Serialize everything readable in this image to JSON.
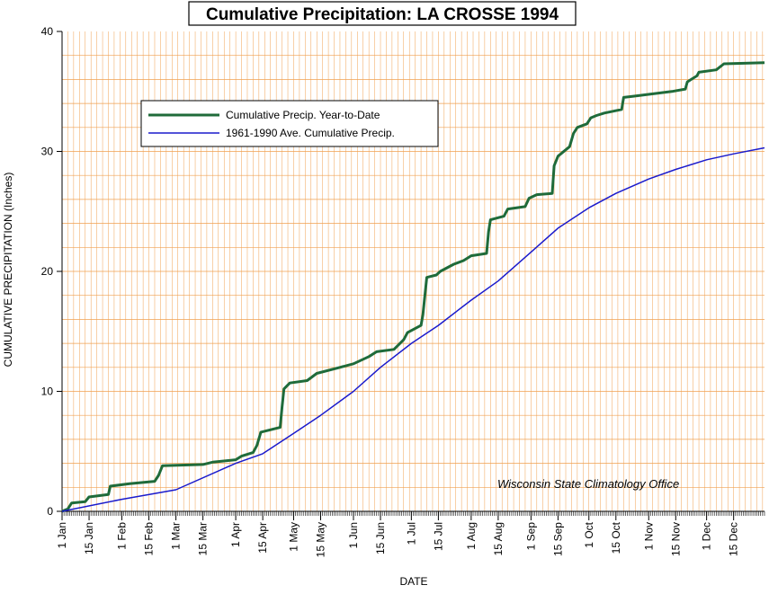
{
  "chart_data": {
    "type": "line",
    "title": "Cumulative Precipitation: LA CROSSE 1994",
    "xlabel": "DATE",
    "ylabel": "CUMULATIVE PRECIPITATION (Inches)",
    "ylim": [
      0,
      40
    ],
    "yticks": [
      0,
      10,
      20,
      30,
      40
    ],
    "xlim": [
      1,
      365
    ],
    "x_unit": "day of year",
    "xtick_labels": [
      "1 Jan",
      "15 Jan",
      "1 Feb",
      "15 Feb",
      "1 Mar",
      "15 Mar",
      "1 Apr",
      "15 Apr",
      "1 May",
      "15 May",
      "1 Jun",
      "15 Jun",
      "1 Jul",
      "15 Jul",
      "1 Aug",
      "15 Aug",
      "1 Sep",
      "15 Sep",
      "1 Oct",
      "15 Oct",
      "1 Nov",
      "15 Nov",
      "1 Dec",
      "15 Dec"
    ],
    "xtick_days": [
      1,
      15,
      32,
      46,
      60,
      74,
      91,
      105,
      121,
      135,
      152,
      166,
      182,
      196,
      213,
      227,
      244,
      258,
      274,
      288,
      305,
      319,
      335,
      349
    ],
    "grid": true,
    "legend_position": "upper-left",
    "annotation": "Wisconsin State Climatology Office",
    "colors": {
      "background": "#ffffff",
      "grid": "#f0a050",
      "observed": "#1f6b3a",
      "average": "#1a1acc",
      "axis": "#000000"
    },
    "series": [
      {
        "name": "Cumulative Precip. Year-to-Date",
        "color": "#1f6b3a",
        "step": true,
        "points": [
          [
            1,
            0.0
          ],
          [
            4,
            0.2
          ],
          [
            6,
            0.7
          ],
          [
            13,
            0.8
          ],
          [
            15,
            1.2
          ],
          [
            25,
            1.4
          ],
          [
            26,
            2.1
          ],
          [
            36,
            2.3
          ],
          [
            49,
            2.5
          ],
          [
            51,
            3.0
          ],
          [
            53,
            3.8
          ],
          [
            74,
            3.9
          ],
          [
            79,
            4.1
          ],
          [
            91,
            4.3
          ],
          [
            94,
            4.6
          ],
          [
            100,
            4.9
          ],
          [
            102,
            5.5
          ],
          [
            104,
            6.6
          ],
          [
            114,
            7.0
          ],
          [
            115,
            8.7
          ],
          [
            116,
            10.2
          ],
          [
            119,
            10.7
          ],
          [
            128,
            10.9
          ],
          [
            133,
            11.5
          ],
          [
            145,
            12.0
          ],
          [
            152,
            12.3
          ],
          [
            160,
            12.9
          ],
          [
            164,
            13.3
          ],
          [
            173,
            13.5
          ],
          [
            178,
            14.3
          ],
          [
            180,
            14.9
          ],
          [
            187,
            15.5
          ],
          [
            188,
            16.4
          ],
          [
            190,
            19.5
          ],
          [
            195,
            19.7
          ],
          [
            197,
            20.0
          ],
          [
            204,
            20.6
          ],
          [
            209,
            20.9
          ],
          [
            213,
            21.3
          ],
          [
            221,
            21.5
          ],
          [
            222,
            23.3
          ],
          [
            223,
            24.3
          ],
          [
            230,
            24.6
          ],
          [
            232,
            25.2
          ],
          [
            241,
            25.4
          ],
          [
            243,
            26.1
          ],
          [
            247,
            26.4
          ],
          [
            255,
            26.5
          ],
          [
            256,
            28.8
          ],
          [
            258,
            29.6
          ],
          [
            264,
            30.4
          ],
          [
            266,
            31.5
          ],
          [
            268,
            32.0
          ],
          [
            273,
            32.3
          ],
          [
            275,
            32.8
          ],
          [
            278,
            33.0
          ],
          [
            282,
            33.2
          ],
          [
            291,
            33.5
          ],
          [
            292,
            34.5
          ],
          [
            297,
            34.6
          ],
          [
            317,
            35.0
          ],
          [
            324,
            35.2
          ],
          [
            325,
            35.8
          ],
          [
            327,
            36.0
          ],
          [
            330,
            36.3
          ],
          [
            331,
            36.6
          ],
          [
            340,
            36.8
          ],
          [
            344,
            37.3
          ],
          [
            365,
            37.4
          ]
        ]
      },
      {
        "name": "1961-1990 Ave. Cumulative Precip.",
        "color": "#1a1acc",
        "step": false,
        "points": [
          [
            1,
            0.0
          ],
          [
            32,
            1.0
          ],
          [
            60,
            1.8
          ],
          [
            91,
            4.0
          ],
          [
            105,
            4.8
          ],
          [
            121,
            6.5
          ],
          [
            135,
            8.0
          ],
          [
            152,
            10.0
          ],
          [
            166,
            12.0
          ],
          [
            182,
            14.0
          ],
          [
            196,
            15.5
          ],
          [
            213,
            17.6
          ],
          [
            227,
            19.2
          ],
          [
            244,
            21.6
          ],
          [
            258,
            23.6
          ],
          [
            274,
            25.3
          ],
          [
            288,
            26.5
          ],
          [
            305,
            27.7
          ],
          [
            319,
            28.5
          ],
          [
            335,
            29.3
          ],
          [
            349,
            29.8
          ],
          [
            365,
            30.3
          ]
        ]
      }
    ]
  }
}
